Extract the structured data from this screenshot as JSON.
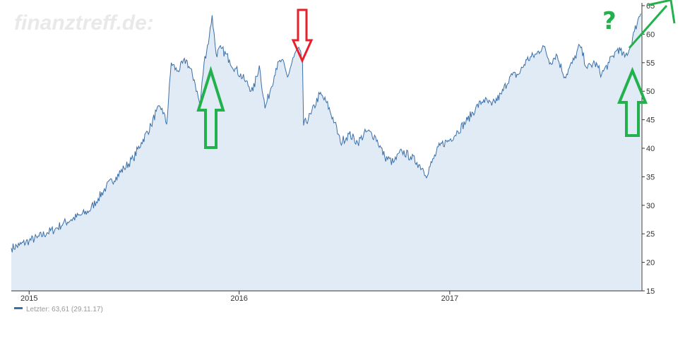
{
  "watermark": "finanztreff.de:",
  "legend": {
    "label": "Letzter: 63,61 (29.11.17)",
    "color": "#3a6fa8"
  },
  "annotation_question": "?",
  "colors": {
    "line": "#3a6fa8",
    "area": "#e1ebf6",
    "arrow_green": "#22b14c",
    "arrow_red": "#e8202a"
  },
  "chart_data": {
    "type": "area",
    "title": "",
    "xlabel": "",
    "ylabel": "",
    "ylim": [
      15,
      65
    ],
    "xlim": [
      "2014-12-01",
      "2017-12-01"
    ],
    "x_ticks": [
      "2015",
      "2016",
      "2017"
    ],
    "x_tick_dates": [
      "2015-01-01",
      "2016-01-01",
      "2017-01-01"
    ],
    "y_ticks": [
      15,
      20,
      25,
      30,
      35,
      40,
      45,
      50,
      55,
      60,
      65
    ],
    "y_axis_position": "right",
    "grid": false,
    "legend_position": "bottom-left",
    "series": [
      {
        "name": "Letzter",
        "points": [
          [
            "2014-12-01",
            22.5
          ],
          [
            "2014-12-15",
            23.0
          ],
          [
            "2015-01-01",
            23.8
          ],
          [
            "2015-01-15",
            24.3
          ],
          [
            "2015-02-01",
            25.2
          ],
          [
            "2015-02-15",
            25.8
          ],
          [
            "2015-03-01",
            26.8
          ],
          [
            "2015-03-15",
            27.5
          ],
          [
            "2015-04-01",
            28.3
          ],
          [
            "2015-04-15",
            29.0
          ],
          [
            "2015-05-01",
            31.2
          ],
          [
            "2015-05-15",
            33.2
          ],
          [
            "2015-06-01",
            35.0
          ],
          [
            "2015-06-15",
            36.5
          ],
          [
            "2015-07-01",
            38.2
          ],
          [
            "2015-07-15",
            41.0
          ],
          [
            "2015-08-01",
            44.0
          ],
          [
            "2015-08-10",
            46.5
          ],
          [
            "2015-08-20",
            47.0
          ],
          [
            "2015-08-28",
            44.2
          ],
          [
            "2015-09-05",
            55.0
          ],
          [
            "2015-09-15",
            53.5
          ],
          [
            "2015-10-01",
            55.5
          ],
          [
            "2015-10-15",
            52.0
          ],
          [
            "2015-10-25",
            47.5
          ],
          [
            "2015-11-01",
            55.0
          ],
          [
            "2015-11-10",
            59.5
          ],
          [
            "2015-11-15",
            63.3
          ],
          [
            "2015-11-22",
            56.5
          ],
          [
            "2015-12-01",
            57.5
          ],
          [
            "2015-12-15",
            55.5
          ],
          [
            "2015-12-25",
            54.0
          ],
          [
            "2016-01-10",
            52.0
          ],
          [
            "2016-01-25",
            50.0
          ],
          [
            "2016-02-05",
            54.5
          ],
          [
            "2016-02-15",
            47.0
          ],
          [
            "2016-02-25",
            50.5
          ],
          [
            "2016-03-05",
            54.0
          ],
          [
            "2016-03-15",
            55.5
          ],
          [
            "2016-03-25",
            52.5
          ],
          [
            "2016-04-05",
            56.0
          ],
          [
            "2016-04-12",
            57.5
          ],
          [
            "2016-04-20",
            55.5
          ],
          [
            "2016-04-22",
            44.0
          ],
          [
            "2016-05-05",
            46.0
          ],
          [
            "2016-05-20",
            49.5
          ],
          [
            "2016-06-01",
            48.0
          ],
          [
            "2016-06-15",
            44.5
          ],
          [
            "2016-06-25",
            41.0
          ],
          [
            "2016-07-10",
            42.5
          ],
          [
            "2016-07-25",
            41.0
          ],
          [
            "2016-08-10",
            43.0
          ],
          [
            "2016-08-25",
            42.0
          ],
          [
            "2016-09-10",
            38.5
          ],
          [
            "2016-09-25",
            37.5
          ],
          [
            "2016-10-10",
            39.5
          ],
          [
            "2016-10-25",
            38.5
          ],
          [
            "2016-11-05",
            37.5
          ],
          [
            "2016-11-15",
            36.5
          ],
          [
            "2016-11-20",
            35.2
          ],
          [
            "2016-12-01",
            37.5
          ],
          [
            "2016-12-15",
            40.5
          ],
          [
            "2017-01-01",
            41.5
          ],
          [
            "2017-01-15",
            43.0
          ],
          [
            "2017-02-01",
            45.0
          ],
          [
            "2017-02-15",
            47.0
          ],
          [
            "2017-03-01",
            48.5
          ],
          [
            "2017-03-15",
            47.5
          ],
          [
            "2017-04-01",
            49.5
          ],
          [
            "2017-04-15",
            52.5
          ],
          [
            "2017-05-01",
            53.0
          ],
          [
            "2017-05-15",
            55.5
          ],
          [
            "2017-06-01",
            56.5
          ],
          [
            "2017-06-12",
            58.0
          ],
          [
            "2017-06-25",
            55.0
          ],
          [
            "2017-07-05",
            56.5
          ],
          [
            "2017-07-20",
            52.5
          ],
          [
            "2017-08-05",
            55.5
          ],
          [
            "2017-08-15",
            58.0
          ],
          [
            "2017-08-28",
            54.0
          ],
          [
            "2017-09-10",
            55.0
          ],
          [
            "2017-09-22",
            53.0
          ],
          [
            "2017-10-05",
            55.0
          ],
          [
            "2017-10-20",
            57.5
          ],
          [
            "2017-11-01",
            56.0
          ],
          [
            "2017-11-10",
            57.5
          ],
          [
            "2017-11-18",
            60.5
          ],
          [
            "2017-11-24",
            62.5
          ],
          [
            "2017-11-29",
            63.6
          ]
        ]
      }
    ]
  }
}
